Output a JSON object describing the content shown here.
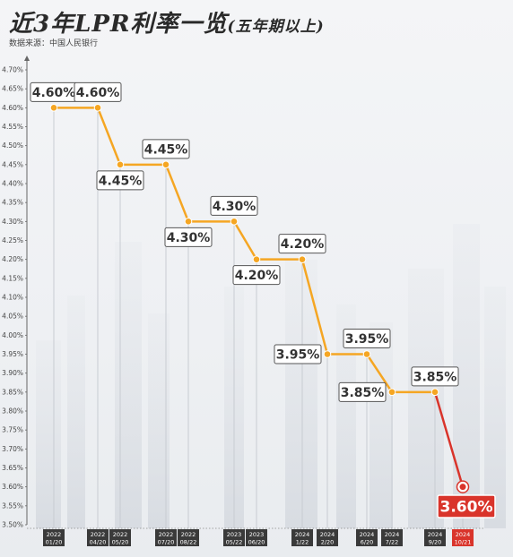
{
  "header": {
    "title": "近3年LPR利率一览",
    "title_sub": "(五年期以上)",
    "source": "数据来源：中国人民银行"
  },
  "colors": {
    "line": "#f5a623",
    "line_last": "#d9342b",
    "label_border": "#555555",
    "x_box": "#3a3a3a",
    "x_box_last": "#d9342b"
  },
  "chart_data": {
    "type": "line",
    "title": "近3年LPR利率一览(五年期以上)",
    "xlabel": "",
    "ylabel": "",
    "ylim": [
      3.5,
      4.7
    ],
    "y_tick_step": 0.05,
    "grid": false,
    "series": [
      {
        "name": "",
        "values": [
          4.6,
          4.6,
          4.45,
          4.45,
          4.3,
          4.3,
          4.2,
          4.2,
          3.95,
          3.95,
          3.85,
          3.85,
          3.6
        ]
      }
    ],
    "categories": [
      [
        "2022",
        "01/20"
      ],
      [
        "2022",
        "04/20"
      ],
      [
        "2022",
        "05/20"
      ],
      [
        "2022",
        "07/20"
      ],
      [
        "2022",
        "08/22"
      ],
      [
        "2023",
        "05/22"
      ],
      [
        "2023",
        "06/20"
      ],
      [
        "2024",
        "1/22"
      ],
      [
        "2024",
        "2/20"
      ],
      [
        "2024",
        "6/20"
      ],
      [
        "2024",
        "7/22"
      ],
      [
        "2024",
        "9/20"
      ],
      [
        "2024",
        "10/21"
      ]
    ],
    "point_labels": [
      "4.60%",
      "4.60%",
      "4.45%",
      "4.45%",
      "4.30%",
      "4.30%",
      "4.20%",
      "4.20%",
      "3.95%",
      "3.95%",
      "3.85%",
      "3.85%",
      "3.60%"
    ],
    "label_positions": [
      "above",
      "above",
      "below",
      "above",
      "below",
      "above",
      "below",
      "above",
      "left",
      "above",
      "left",
      "above",
      "below"
    ]
  }
}
